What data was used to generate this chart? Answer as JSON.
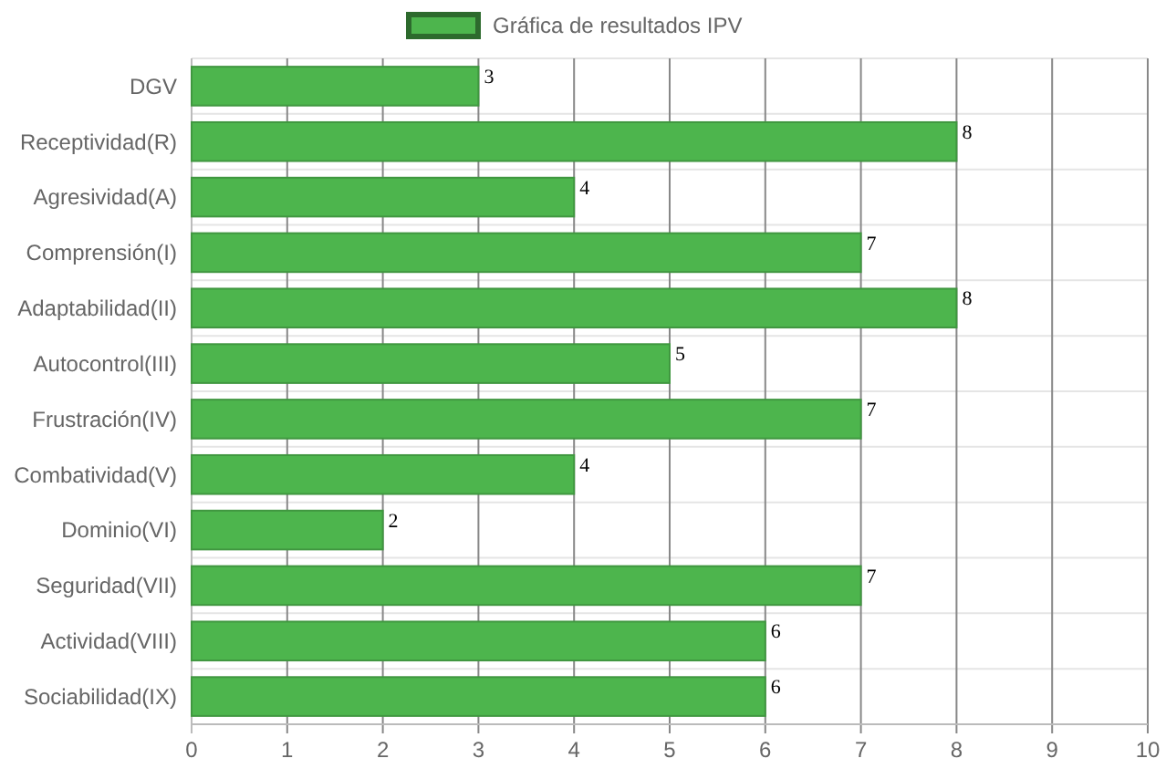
{
  "chart_data": {
    "type": "bar",
    "orientation": "horizontal",
    "categories": [
      "DGV",
      "Receptividad(R)",
      "Agresividad(A)",
      "Comprensión(I)",
      "Adaptabilidad(II)",
      "Autocontrol(III)",
      "Frustración(IV)",
      "Combatividad(V)",
      "Dominio(VI)",
      "Seguridad(VII)",
      "Actividad(VIII)",
      "Sociabilidad(IX)"
    ],
    "series": [
      {
        "name": "Gráfica de resultados IPV",
        "color": "#4db54d",
        "values": [
          3,
          8,
          4,
          7,
          8,
          5,
          7,
          4,
          2,
          7,
          6,
          6
        ]
      }
    ],
    "xlim": [
      0,
      10
    ],
    "xticks": [
      0,
      1,
      2,
      3,
      4,
      5,
      6,
      7,
      8,
      9,
      10
    ],
    "grid": true,
    "legend": "top",
    "data_labels": true
  }
}
